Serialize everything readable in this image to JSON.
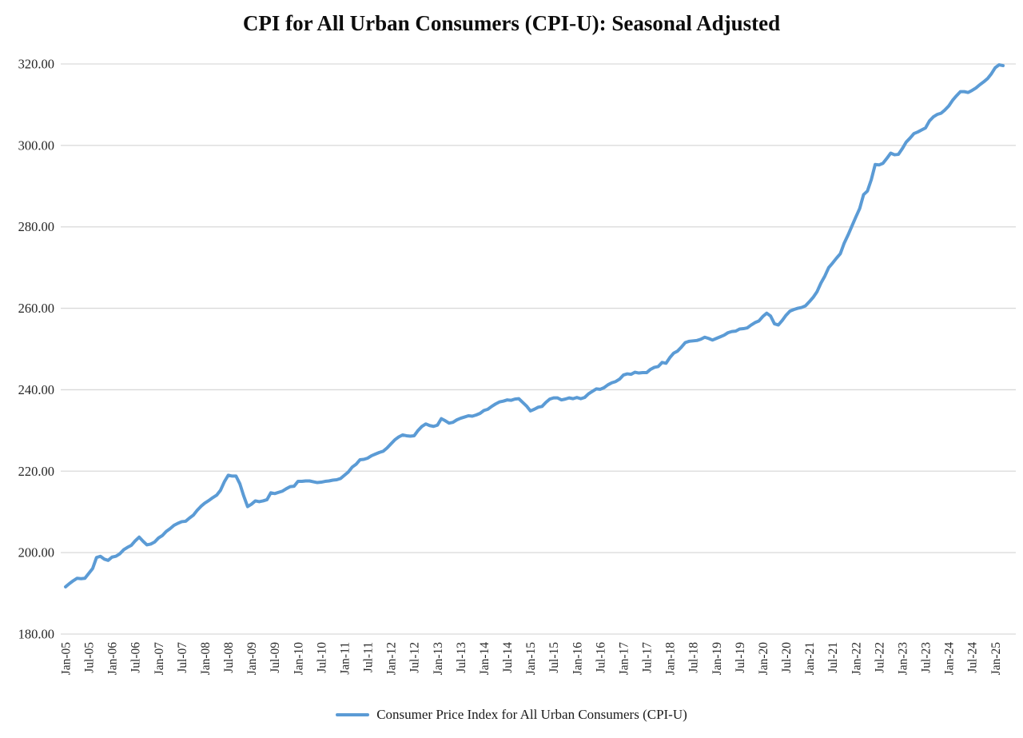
{
  "title": "CPI for All Urban Consumers (CPI-U): Seasonal Adjusted",
  "legend": {
    "label": "Consumer Price Index for All Urban Consumers (CPI-U)",
    "swatch_color": "#5B9BD5"
  },
  "colors": {
    "series_line": "#5B9BD5",
    "gridline": "#D9D9D9",
    "axis_text": "#262626",
    "background": "#FFFFFF"
  },
  "chart_data": {
    "type": "line",
    "title": "CPI for All Urban Consumers (CPI-U): Seasonal Adjusted",
    "xlabel": "",
    "ylabel": "",
    "ylim": [
      180,
      320
    ],
    "y_step": 20,
    "grid": "horizontal",
    "legend_position": "bottom",
    "y_tick_labels": [
      "320.00",
      "300.00",
      "280.00",
      "260.00",
      "240.00",
      "220.00",
      "200.00",
      "180.00"
    ],
    "x_tick_labels": [
      "Jan-05",
      "Jul-05",
      "Jan-06",
      "Jul-06",
      "Jan-07",
      "Jul-07",
      "Jan-08",
      "Jul-08",
      "Jan-09",
      "Jul-09",
      "Jan-10",
      "Jul-10",
      "Jan-11",
      "Jul-11",
      "Jan-12",
      "Jul-12",
      "Jan-13",
      "Jul-13",
      "Jan-14",
      "Jul-14",
      "Jan-15",
      "Jul-15",
      "Jan-16",
      "Jul-16",
      "Jan-17",
      "Jul-17",
      "Jan-18",
      "Jul-18",
      "Jan-19",
      "Jul-19",
      "Jan-20",
      "Jul-20",
      "Jan-21",
      "Jul-21",
      "Jan-22",
      "Jul-22",
      "Jan-23",
      "Jul-23",
      "Jan-24",
      "Jul-24",
      "Jan-25"
    ],
    "x_tick_interval_months": 6,
    "series": [
      {
        "name": "Consumer Price Index for All Urban Consumers (CPI-U)",
        "color": "#5B9BD5",
        "frequency": "monthly",
        "start_month": "Jan-05",
        "end_month": "Mar-25",
        "values": [
          191.6,
          192.4,
          193.1,
          193.7,
          193.6,
          193.7,
          194.9,
          196.1,
          198.8,
          199.1,
          198.4,
          198.1,
          198.9,
          199.1,
          199.7,
          200.7,
          201.3,
          201.8,
          202.9,
          203.8,
          202.8,
          201.9,
          202.1,
          202.6,
          203.6,
          204.2,
          205.2,
          205.9,
          206.7,
          207.2,
          207.6,
          207.7,
          208.5,
          209.2,
          210.4,
          211.4,
          212.2,
          212.8,
          213.5,
          214.1,
          215.3,
          217.4,
          219.0,
          218.8,
          218.8,
          216.9,
          213.9,
          211.3,
          211.9,
          212.7,
          212.5,
          212.7,
          213.0,
          214.7,
          214.5,
          214.8,
          215.1,
          215.7,
          216.2,
          216.3,
          217.5,
          217.5,
          217.6,
          217.6,
          217.4,
          217.2,
          217.3,
          217.5,
          217.6,
          217.8,
          217.9,
          218.2,
          219.0,
          219.8,
          221.0,
          221.7,
          222.8,
          222.9,
          223.2,
          223.8,
          224.2,
          224.6,
          224.9,
          225.7,
          226.7,
          227.7,
          228.4,
          228.9,
          228.7,
          228.6,
          228.7,
          230.0,
          231.0,
          231.6,
          231.2,
          231.0,
          231.3,
          232.9,
          232.4,
          231.8,
          232.0,
          232.6,
          233.0,
          233.3,
          233.6,
          233.5,
          233.8,
          234.2,
          234.9,
          235.2,
          235.9,
          236.5,
          237.0,
          237.2,
          237.5,
          237.4,
          237.7,
          237.8,
          236.9,
          236.0,
          234.8,
          235.2,
          235.7,
          235.9,
          236.9,
          237.7,
          238.0,
          238.0,
          237.5,
          237.7,
          238.0,
          237.8,
          238.1,
          237.8,
          238.1,
          239.0,
          239.6,
          240.2,
          240.1,
          240.5,
          241.2,
          241.7,
          242.0,
          242.6,
          243.6,
          243.9,
          243.8,
          244.3,
          244.1,
          244.2,
          244.2,
          245.0,
          245.5,
          245.7,
          246.7,
          246.5,
          247.9,
          249.0,
          249.5,
          250.5,
          251.6,
          251.9,
          252.0,
          252.1,
          252.4,
          252.9,
          252.6,
          252.2,
          252.6,
          253.0,
          253.4,
          254.0,
          254.3,
          254.4,
          254.9,
          255.0,
          255.2,
          255.9,
          256.5,
          256.9,
          258.0,
          258.8,
          258.1,
          256.2,
          255.9,
          257.0,
          258.3,
          259.3,
          259.7,
          260.0,
          260.2,
          260.6,
          261.6,
          262.7,
          264.1,
          266.2,
          267.9,
          270.0,
          271.1,
          272.3,
          273.4,
          276.0,
          278.0,
          280.2,
          282.4,
          284.5,
          287.9,
          288.8,
          291.6,
          295.3,
          295.2,
          295.6,
          296.8,
          298.1,
          297.7,
          297.8,
          299.2,
          300.8,
          301.8,
          302.9,
          303.3,
          303.8,
          304.3,
          306.0,
          307.0,
          307.6,
          307.9,
          308.7,
          309.7,
          311.1,
          312.2,
          313.2,
          313.2,
          313.0,
          313.5,
          314.1,
          314.9,
          315.6,
          316.4,
          317.6,
          319.1,
          319.8,
          319.6
        ]
      }
    ]
  }
}
